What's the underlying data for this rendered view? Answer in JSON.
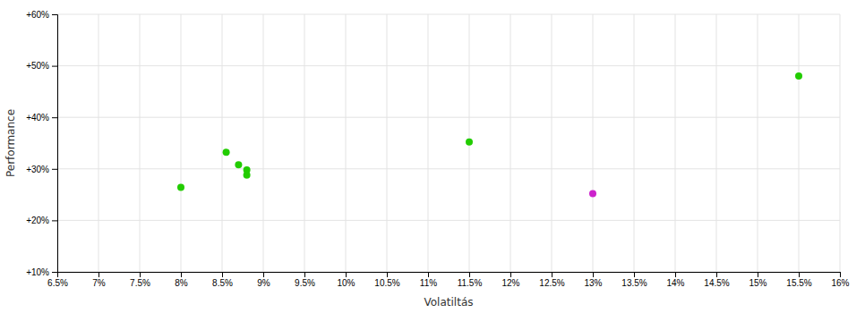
{
  "chart_data": {
    "type": "scatter",
    "xlabel": "Volatiltás",
    "ylabel": "Performance",
    "series": [
      {
        "color": "#22cc00",
        "x": [
          0.08,
          0.0855,
          0.087,
          0.088,
          0.088,
          0.115,
          0.155
        ],
        "values": [
          0.264,
          0.332,
          0.308,
          0.298,
          0.288,
          0.352,
          0.48
        ]
      },
      {
        "color": "#cc22cc",
        "x": [
          0.13
        ],
        "values": [
          0.252
        ]
      }
    ],
    "xlim": [
      0.065,
      0.16
    ],
    "ylim": [
      0.1,
      0.6
    ],
    "xticks": [
      {
        "value": 0.065,
        "label": "6.5%"
      },
      {
        "value": 0.07,
        "label": "7%"
      },
      {
        "value": 0.075,
        "label": "7.5%"
      },
      {
        "value": 0.08,
        "label": "8%"
      },
      {
        "value": 0.085,
        "label": "8.5%"
      },
      {
        "value": 0.09,
        "label": "9%"
      },
      {
        "value": 0.095,
        "label": "9.5%"
      },
      {
        "value": 0.1,
        "label": "10%"
      },
      {
        "value": 0.105,
        "label": "10.5%"
      },
      {
        "value": 0.11,
        "label": "11%"
      },
      {
        "value": 0.115,
        "label": "11.5%"
      },
      {
        "value": 0.12,
        "label": "12%"
      },
      {
        "value": 0.125,
        "label": "12.5%"
      },
      {
        "value": 0.13,
        "label": "13%"
      },
      {
        "value": 0.135,
        "label": "13.5%"
      },
      {
        "value": 0.14,
        "label": "14%"
      },
      {
        "value": 0.145,
        "label": "14.5%"
      },
      {
        "value": 0.15,
        "label": "15%"
      },
      {
        "value": 0.155,
        "label": "15.5%"
      },
      {
        "value": 0.16,
        "label": "16%"
      }
    ],
    "yticks": [
      {
        "value": 0.1,
        "label": "+10%"
      },
      {
        "value": 0.2,
        "label": "+20%"
      },
      {
        "value": 0.3,
        "label": "+30%"
      },
      {
        "value": 0.4,
        "label": "+40%"
      },
      {
        "value": 0.5,
        "label": "+50%"
      },
      {
        "value": 0.6,
        "label": "+60%"
      }
    ],
    "grid": true
  }
}
